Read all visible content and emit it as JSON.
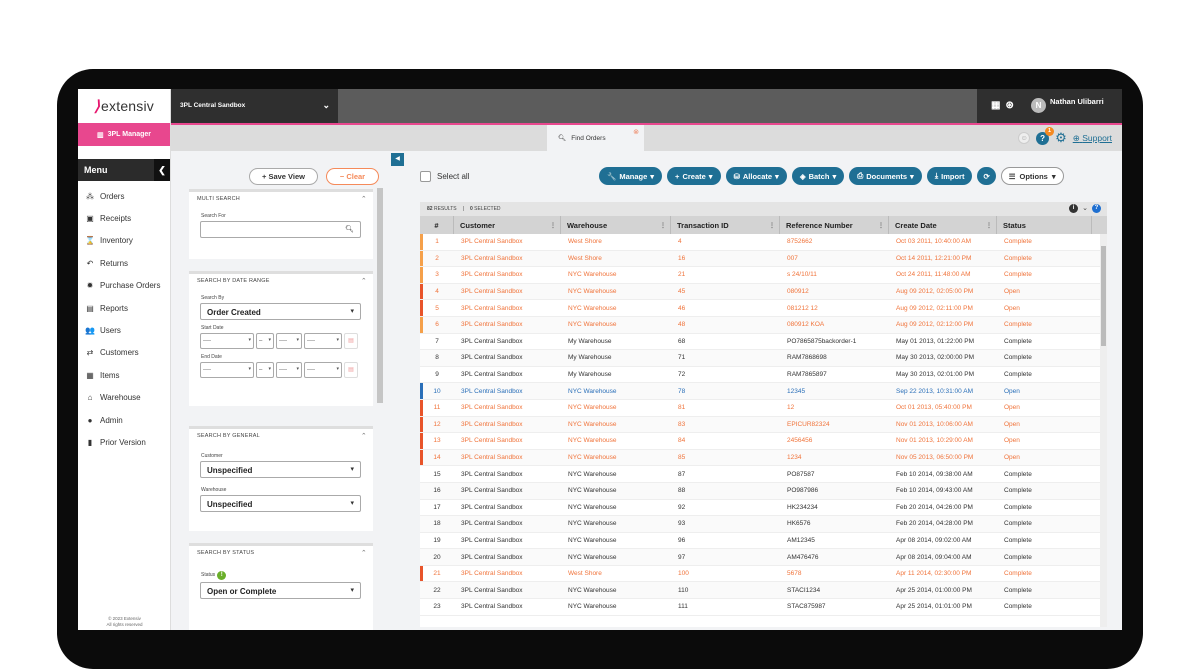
{
  "brand": {
    "logo_text": "extensiv",
    "app": "3PL Manager",
    "copyright_line1": "© 2023 Extensiv",
    "copyright_line2": "All rights reserved"
  },
  "header": {
    "sandbox": "3PL Central Sandbox",
    "user_initial": "N",
    "user_name": "Nathan Ulibarri",
    "badge_count": "1",
    "support": "Support"
  },
  "tab": {
    "label": "Find Orders"
  },
  "menu": {
    "title": "Menu",
    "items": [
      {
        "label": "Orders",
        "icon": "orders-icon",
        "glyph": "⁂"
      },
      {
        "label": "Receipts",
        "icon": "receipts-icon",
        "glyph": "▣"
      },
      {
        "label": "Inventory",
        "icon": "inventory-icon",
        "glyph": "⌛"
      },
      {
        "label": "Returns",
        "icon": "returns-icon",
        "glyph": "↶"
      },
      {
        "label": "Purchase Orders",
        "icon": "purchase-orders-icon",
        "glyph": "✹"
      },
      {
        "label": "Reports",
        "icon": "reports-icon",
        "glyph": "▤"
      },
      {
        "label": "Users",
        "icon": "users-icon",
        "glyph": "👥"
      },
      {
        "label": "Customers",
        "icon": "customers-icon",
        "glyph": "⇄"
      },
      {
        "label": "Items",
        "icon": "items-icon",
        "glyph": "▦"
      },
      {
        "label": "Warehouse",
        "icon": "warehouse-icon",
        "glyph": "⌂"
      },
      {
        "label": "Admin",
        "icon": "admin-icon",
        "glyph": "●"
      },
      {
        "label": "Prior Version",
        "icon": "prior-version-icon",
        "glyph": "▮"
      }
    ]
  },
  "filters": {
    "save_view": "Save View",
    "clear": "Clear",
    "multi_search": {
      "title": "MULTI SEARCH",
      "label": "Search For",
      "value": ""
    },
    "date_range": {
      "title": "SEARCH BY DATE RANGE",
      "search_by_label": "Search By",
      "search_by_value": "Order Created",
      "start_label": "Start Date",
      "end_label": "End Date",
      "placeholder": "----"
    },
    "general": {
      "title": "SEARCH BY GENERAL",
      "customer_label": "Customer",
      "customer_value": "Unspecified",
      "warehouse_label": "Warehouse",
      "warehouse_value": "Unspecified"
    },
    "status": {
      "title": "SEARCH BY STATUS",
      "label": "Status",
      "value": "Open or Complete"
    }
  },
  "toolbar": {
    "select_all": "Select all",
    "buttons": [
      {
        "label": "Manage",
        "icon": "wrench-icon",
        "glyph": "🔧",
        "caret": true
      },
      {
        "label": "Create",
        "icon": "plus-icon",
        "glyph": "+",
        "caret": true
      },
      {
        "label": "Allocate",
        "icon": "allocate-icon",
        "glyph": "⛁",
        "caret": true
      },
      {
        "label": "Batch",
        "icon": "batch-icon",
        "glyph": "◈",
        "caret": true
      },
      {
        "label": "Documents",
        "icon": "printer-icon",
        "glyph": "⎙",
        "caret": true
      },
      {
        "label": "Import",
        "icon": "import-icon",
        "glyph": "⤓",
        "caret": false
      }
    ],
    "options": "Options"
  },
  "grid": {
    "results_count": "82",
    "results_label": "RESULTS",
    "selected_count": "0",
    "selected_label": "SELECTED",
    "columns": [
      "#",
      "Customer",
      "Warehouse",
      "Transaction ID",
      "Reference Number",
      "Create Date",
      "Status"
    ],
    "colors": {
      "orange": "#f0733a",
      "blue": "#2a6fb8",
      "black": "#333333"
    },
    "rows": [
      {
        "n": "1",
        "cust": "3PL Central Sandbox",
        "wh": "West Shore",
        "tid": "4",
        "ref": "8752662",
        "date": "Oct 03 2011, 10:40:00 AM",
        "status": "Complete",
        "color": "orange",
        "bar": "#f5a04a"
      },
      {
        "n": "2",
        "cust": "3PL Central Sandbox",
        "wh": "West Shore",
        "tid": "16",
        "ref": "007",
        "date": "Oct 14 2011, 12:21:00 PM",
        "status": "Complete",
        "color": "orange",
        "bar": "#f5a04a"
      },
      {
        "n": "3",
        "cust": "3PL Central Sandbox",
        "wh": "NYC Warehouse",
        "tid": "21",
        "ref": "s 24/10/11",
        "date": "Oct 24 2011, 11:48:00 AM",
        "status": "Complete",
        "color": "orange",
        "bar": "#f5a04a"
      },
      {
        "n": "4",
        "cust": "3PL Central Sandbox",
        "wh": "NYC Warehouse",
        "tid": "45",
        "ref": "080912",
        "date": "Aug 09 2012, 02:05:00 PM",
        "status": "Open",
        "color": "orange",
        "bar": "#e8542a"
      },
      {
        "n": "5",
        "cust": "3PL Central Sandbox",
        "wh": "NYC Warehouse",
        "tid": "46",
        "ref": "081212 12",
        "date": "Aug 09 2012, 02:11:00 PM",
        "status": "Open",
        "color": "orange",
        "bar": "#e8542a"
      },
      {
        "n": "6",
        "cust": "3PL Central Sandbox",
        "wh": "NYC Warehouse",
        "tid": "48",
        "ref": "080912 KOA",
        "date": "Aug 09 2012, 02:12:00 PM",
        "status": "Complete",
        "color": "orange",
        "bar": "#f5a04a"
      },
      {
        "n": "7",
        "cust": "3PL Central Sandbox",
        "wh": "My Warehouse",
        "tid": "68",
        "ref": "PO7865875backorder-1",
        "date": "May 01 2013, 01:22:00 PM",
        "status": "Complete",
        "color": "black",
        "bar": ""
      },
      {
        "n": "8",
        "cust": "3PL Central Sandbox",
        "wh": "My Warehouse",
        "tid": "71",
        "ref": "RAM7868698",
        "date": "May 30 2013, 02:00:00 PM",
        "status": "Complete",
        "color": "black",
        "bar": ""
      },
      {
        "n": "9",
        "cust": "3PL Central Sandbox",
        "wh": "My Warehouse",
        "tid": "72",
        "ref": "RAM7865897",
        "date": "May 30 2013, 02:01:00 PM",
        "status": "Complete",
        "color": "black",
        "bar": ""
      },
      {
        "n": "10",
        "cust": "3PL Central Sandbox",
        "wh": "NYC Warehouse",
        "tid": "78",
        "ref": "12345",
        "date": "Sep 22 2013, 10:31:00 AM",
        "status": "Open",
        "color": "blue",
        "bar": "#2a6fb8"
      },
      {
        "n": "11",
        "cust": "3PL Central Sandbox",
        "wh": "NYC Warehouse",
        "tid": "81",
        "ref": "12",
        "date": "Oct 01 2013, 05:40:00 PM",
        "status": "Open",
        "color": "orange",
        "bar": "#e8542a"
      },
      {
        "n": "12",
        "cust": "3PL Central Sandbox",
        "wh": "NYC Warehouse",
        "tid": "83",
        "ref": "EPICUR82324",
        "date": "Nov 01 2013, 10:06:00 AM",
        "status": "Open",
        "color": "orange",
        "bar": "#e8542a"
      },
      {
        "n": "13",
        "cust": "3PL Central Sandbox",
        "wh": "NYC Warehouse",
        "tid": "84",
        "ref": "2456456",
        "date": "Nov 01 2013, 10:29:00 AM",
        "status": "Open",
        "color": "orange",
        "bar": "#e8542a"
      },
      {
        "n": "14",
        "cust": "3PL Central Sandbox",
        "wh": "NYC Warehouse",
        "tid": "85",
        "ref": "1234",
        "date": "Nov 05 2013, 06:50:00 PM",
        "status": "Open",
        "color": "orange",
        "bar": "#e8542a"
      },
      {
        "n": "15",
        "cust": "3PL Central Sandbox",
        "wh": "NYC Warehouse",
        "tid": "87",
        "ref": "PO87587",
        "date": "Feb 10 2014, 09:38:00 AM",
        "status": "Complete",
        "color": "black",
        "bar": ""
      },
      {
        "n": "16",
        "cust": "3PL Central Sandbox",
        "wh": "NYC Warehouse",
        "tid": "88",
        "ref": "PO987986",
        "date": "Feb 10 2014, 09:43:00 AM",
        "status": "Complete",
        "color": "black",
        "bar": ""
      },
      {
        "n": "17",
        "cust": "3PL Central Sandbox",
        "wh": "NYC Warehouse",
        "tid": "92",
        "ref": "HK234234",
        "date": "Feb 20 2014, 04:26:00 PM",
        "status": "Complete",
        "color": "black",
        "bar": ""
      },
      {
        "n": "18",
        "cust": "3PL Central Sandbox",
        "wh": "NYC Warehouse",
        "tid": "93",
        "ref": "HK6576",
        "date": "Feb 20 2014, 04:28:00 PM",
        "status": "Complete",
        "color": "black",
        "bar": ""
      },
      {
        "n": "19",
        "cust": "3PL Central Sandbox",
        "wh": "NYC Warehouse",
        "tid": "96",
        "ref": "AM12345",
        "date": "Apr 08 2014, 09:02:00 AM",
        "status": "Complete",
        "color": "black",
        "bar": ""
      },
      {
        "n": "20",
        "cust": "3PL Central Sandbox",
        "wh": "NYC Warehouse",
        "tid": "97",
        "ref": "AM476476",
        "date": "Apr 08 2014, 09:04:00 AM",
        "status": "Complete",
        "color": "black",
        "bar": ""
      },
      {
        "n": "21",
        "cust": "3PL Central Sandbox",
        "wh": "West Shore",
        "tid": "100",
        "ref": "5678",
        "date": "Apr 11 2014, 02:30:00 PM",
        "status": "Complete",
        "color": "orange",
        "bar": "#e8542a"
      },
      {
        "n": "22",
        "cust": "3PL Central Sandbox",
        "wh": "NYC Warehouse",
        "tid": "110",
        "ref": "STACI1234",
        "date": "Apr 25 2014, 01:00:00 PM",
        "status": "Complete",
        "color": "black",
        "bar": ""
      },
      {
        "n": "23",
        "cust": "3PL Central Sandbox",
        "wh": "NYC Warehouse",
        "tid": "111",
        "ref": "STAC875987",
        "date": "Apr 25 2014, 01:01:00 PM",
        "status": "Complete",
        "color": "black",
        "bar": ""
      }
    ]
  }
}
